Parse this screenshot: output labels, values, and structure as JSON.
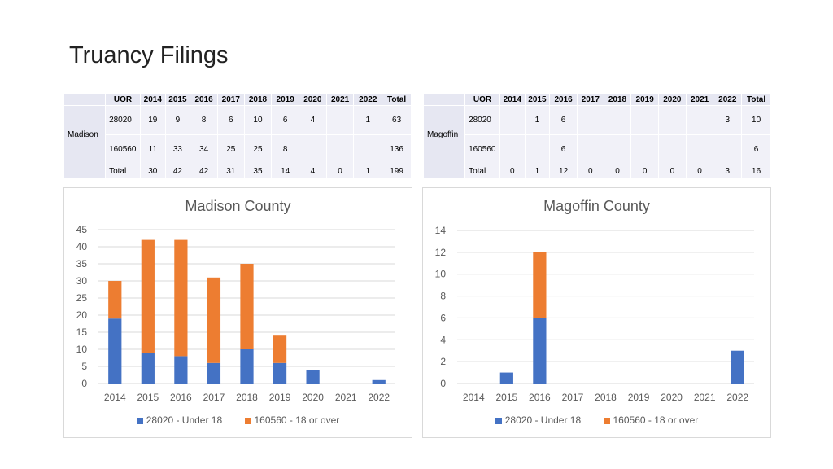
{
  "title": "Truancy Filings",
  "tables": [
    {
      "group_label": "Madison",
      "headers": [
        "UOR",
        "2014",
        "2015",
        "2016",
        "2017",
        "2018",
        "2019",
        "2020",
        "2021",
        "2022",
        "Total"
      ],
      "rows": [
        [
          "28020",
          "19",
          "9",
          "8",
          "6",
          "10",
          "6",
          "4",
          "",
          "1",
          "63"
        ],
        [
          "160560",
          "11",
          "33",
          "34",
          "25",
          "25",
          "8",
          "",
          "",
          "",
          "136"
        ],
        [
          "Total",
          "30",
          "42",
          "42",
          "31",
          "35",
          "14",
          "4",
          "0",
          "1",
          "199"
        ]
      ]
    },
    {
      "group_label": "Magoffin",
      "headers": [
        "UOR",
        "2014",
        "2015",
        "2016",
        "2017",
        "2018",
        "2019",
        "2020",
        "2021",
        "2022",
        "Total"
      ],
      "rows": [
        [
          "28020",
          "",
          "1",
          "6",
          "",
          "",
          "",
          "",
          "",
          "3",
          "10"
        ],
        [
          "160560",
          "",
          "",
          "6",
          "",
          "",
          "",
          "",
          "",
          "",
          "6"
        ],
        [
          "Total",
          "0",
          "1",
          "12",
          "0",
          "0",
          "0",
          "0",
          "0",
          "3",
          "16"
        ]
      ]
    }
  ],
  "chart_data": [
    {
      "type": "bar",
      "stacked": true,
      "title": "Madison County",
      "categories": [
        "2014",
        "2015",
        "2016",
        "2017",
        "2018",
        "2019",
        "2020",
        "2021",
        "2022"
      ],
      "series": [
        {
          "name": "28020 - Under 18",
          "color": "#4472c4",
          "values": [
            19,
            9,
            8,
            6,
            10,
            6,
            4,
            0,
            1
          ]
        },
        {
          "name": "160560 - 18 or over",
          "color": "#ed7d31",
          "values": [
            11,
            33,
            34,
            25,
            25,
            8,
            0,
            0,
            0
          ]
        }
      ],
      "ylim": [
        0,
        45
      ],
      "yticks": [
        0,
        5,
        10,
        15,
        20,
        25,
        30,
        35,
        40,
        45
      ],
      "grid": true,
      "legend": "bottom"
    },
    {
      "type": "bar",
      "stacked": true,
      "title": "Magoffin County",
      "categories": [
        "2014",
        "2015",
        "2016",
        "2017",
        "2018",
        "2019",
        "2020",
        "2021",
        "2022"
      ],
      "series": [
        {
          "name": "28020 - Under 18",
          "color": "#4472c4",
          "values": [
            0,
            1,
            6,
            0,
            0,
            0,
            0,
            0,
            3
          ]
        },
        {
          "name": "160560 - 18 or over",
          "color": "#ed7d31",
          "values": [
            0,
            0,
            6,
            0,
            0,
            0,
            0,
            0,
            0
          ]
        }
      ],
      "ylim": [
        0,
        14
      ],
      "yticks": [
        0,
        2,
        4,
        6,
        8,
        10,
        12,
        14
      ],
      "grid": true,
      "legend": "bottom"
    }
  ]
}
